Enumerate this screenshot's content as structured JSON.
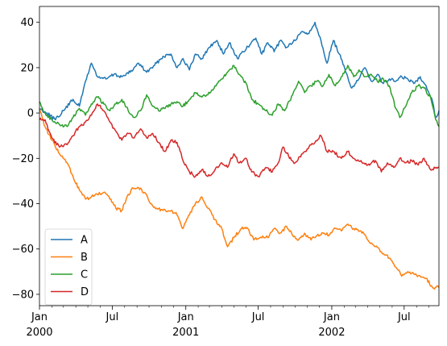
{
  "chart_data": {
    "type": "line",
    "title": "",
    "xlabel": "",
    "ylabel": "",
    "x_range": [
      "2000-01-01",
      "2002-09-26"
    ],
    "ylim": [
      -85,
      47
    ],
    "grid": false,
    "legend_position": "lower-left",
    "y_ticks": [
      40,
      20,
      0,
      -20,
      -40,
      -60,
      -80
    ],
    "y_tick_labels": [
      "40",
      "20",
      "0",
      "−20",
      "−40",
      "−60",
      "−80"
    ],
    "x_major_ticks": [
      {
        "date": "2000-01-01",
        "line1": "Jan",
        "line2": "2000"
      },
      {
        "date": "2000-07-01",
        "line1": "Jul",
        "line2": ""
      },
      {
        "date": "2001-01-01",
        "line1": "Jan",
        "line2": "2001"
      },
      {
        "date": "2001-07-01",
        "line1": "Jul",
        "line2": ""
      },
      {
        "date": "2002-01-01",
        "line1": "Jan",
        "line2": "2002"
      },
      {
        "date": "2002-07-01",
        "line1": "Jul",
        "line2": ""
      }
    ],
    "x_minor_ticks": [
      "2000-02-01",
      "2000-03-01",
      "2000-04-01",
      "2000-05-01",
      "2000-06-01",
      "2000-08-01",
      "2000-09-01",
      "2000-10-01",
      "2000-11-01",
      "2000-12-01",
      "2001-02-01",
      "2001-03-01",
      "2001-04-01",
      "2001-05-01",
      "2001-06-01",
      "2001-08-01",
      "2001-09-01",
      "2001-10-01",
      "2001-11-01",
      "2001-12-01",
      "2002-02-01",
      "2002-03-01",
      "2002-04-01",
      "2002-05-01",
      "2002-06-01",
      "2002-08-01",
      "2002-09-01"
    ],
    "series": [
      {
        "name": "A",
        "color": "#1f77b4",
        "points": [
          [
            "2000-01-01",
            2
          ],
          [
            "2000-01-20",
            0
          ],
          [
            "2000-02-10",
            -3
          ],
          [
            "2000-03-01",
            1
          ],
          [
            "2000-03-25",
            6
          ],
          [
            "2000-04-10",
            3
          ],
          [
            "2000-04-25",
            14
          ],
          [
            "2000-05-10",
            22
          ],
          [
            "2000-05-25",
            16
          ],
          [
            "2000-06-15",
            15
          ],
          [
            "2000-07-05",
            17
          ],
          [
            "2000-07-25",
            16
          ],
          [
            "2000-08-15",
            18
          ],
          [
            "2000-09-05",
            22
          ],
          [
            "2000-09-25",
            18
          ],
          [
            "2000-10-15",
            21
          ],
          [
            "2000-11-05",
            25
          ],
          [
            "2000-11-25",
            26
          ],
          [
            "2000-12-10",
            20
          ],
          [
            "2000-12-25",
            24
          ],
          [
            "2001-01-10",
            19
          ],
          [
            "2001-01-25",
            26
          ],
          [
            "2001-02-10",
            24
          ],
          [
            "2001-03-01",
            29
          ],
          [
            "2001-03-20",
            32
          ],
          [
            "2001-04-05",
            26
          ],
          [
            "2001-04-20",
            31
          ],
          [
            "2001-05-10",
            24
          ],
          [
            "2001-05-25",
            27
          ],
          [
            "2001-06-10",
            30
          ],
          [
            "2001-06-25",
            33
          ],
          [
            "2001-07-10",
            26
          ],
          [
            "2001-07-25",
            31
          ],
          [
            "2001-08-10",
            27
          ],
          [
            "2001-08-25",
            32
          ],
          [
            "2001-09-10",
            29
          ],
          [
            "2001-10-01",
            32
          ],
          [
            "2001-10-20",
            36
          ],
          [
            "2001-11-05",
            35
          ],
          [
            "2001-11-20",
            40
          ],
          [
            "2001-12-05",
            32
          ],
          [
            "2001-12-20",
            22
          ],
          [
            "2002-01-05",
            32
          ],
          [
            "2002-01-20",
            26
          ],
          [
            "2002-02-05",
            18
          ],
          [
            "2002-02-20",
            11
          ],
          [
            "2002-03-10",
            15
          ],
          [
            "2002-03-25",
            20
          ],
          [
            "2002-04-10",
            14
          ],
          [
            "2002-04-25",
            17
          ],
          [
            "2002-05-10",
            13
          ],
          [
            "2002-05-25",
            15
          ],
          [
            "2002-06-10",
            14
          ],
          [
            "2002-06-25",
            16
          ],
          [
            "2002-07-10",
            15
          ],
          [
            "2002-07-25",
            13
          ],
          [
            "2002-08-10",
            16
          ],
          [
            "2002-08-25",
            12
          ],
          [
            "2002-09-10",
            5
          ],
          [
            "2002-09-18",
            -2
          ],
          [
            "2002-09-26",
            1
          ]
        ]
      },
      {
        "name": "B",
        "color": "#ff7f0e",
        "points": [
          [
            "2000-01-01",
            2
          ],
          [
            "2000-01-15",
            -6
          ],
          [
            "2000-02-01",
            -12
          ],
          [
            "2000-02-20",
            -18
          ],
          [
            "2000-03-10",
            -22
          ],
          [
            "2000-03-25",
            -28
          ],
          [
            "2000-04-10",
            -34
          ],
          [
            "2000-04-25",
            -38
          ],
          [
            "2000-05-10",
            -37
          ],
          [
            "2000-05-25",
            -36
          ],
          [
            "2000-06-10",
            -35
          ],
          [
            "2000-06-25",
            -38
          ],
          [
            "2000-07-10",
            -42
          ],
          [
            "2000-07-25",
            -43
          ],
          [
            "2000-08-05",
            -38
          ],
          [
            "2000-08-20",
            -33
          ],
          [
            "2000-09-05",
            -33
          ],
          [
            "2000-09-20",
            -35
          ],
          [
            "2000-10-05",
            -40
          ],
          [
            "2000-10-20",
            -42
          ],
          [
            "2000-11-05",
            -43
          ],
          [
            "2000-11-25",
            -43
          ],
          [
            "2000-12-10",
            -45
          ],
          [
            "2000-12-25",
            -51
          ],
          [
            "2001-01-10",
            -45
          ],
          [
            "2001-01-25",
            -40
          ],
          [
            "2001-02-10",
            -37
          ],
          [
            "2001-02-25",
            -42
          ],
          [
            "2001-03-15",
            -47
          ],
          [
            "2001-04-01",
            -51
          ],
          [
            "2001-04-15",
            -59
          ],
          [
            "2001-05-01",
            -55
          ],
          [
            "2001-05-20",
            -51
          ],
          [
            "2001-06-05",
            -51
          ],
          [
            "2001-06-20",
            -56
          ],
          [
            "2001-07-05",
            -55
          ],
          [
            "2001-07-25",
            -55
          ],
          [
            "2001-08-10",
            -51
          ],
          [
            "2001-08-25",
            -53
          ],
          [
            "2001-09-10",
            -50
          ],
          [
            "2001-09-25",
            -54
          ],
          [
            "2001-10-10",
            -56
          ],
          [
            "2001-10-25",
            -53
          ],
          [
            "2001-11-10",
            -56
          ],
          [
            "2001-11-25",
            -54
          ],
          [
            "2001-12-10",
            -53
          ],
          [
            "2001-12-25",
            -54
          ],
          [
            "2002-01-10",
            -51
          ],
          [
            "2002-01-25",
            -52
          ],
          [
            "2002-02-10",
            -49
          ],
          [
            "2002-02-25",
            -51
          ],
          [
            "2002-03-15",
            -52
          ],
          [
            "2002-04-01",
            -56
          ],
          [
            "2002-04-20",
            -59
          ],
          [
            "2002-05-10",
            -62
          ],
          [
            "2002-05-25",
            -64
          ],
          [
            "2002-06-10",
            -68
          ],
          [
            "2002-06-25",
            -72
          ],
          [
            "2002-07-10",
            -70
          ],
          [
            "2002-07-25",
            -71
          ],
          [
            "2002-08-10",
            -72
          ],
          [
            "2002-08-25",
            -73
          ],
          [
            "2002-09-10",
            -77
          ],
          [
            "2002-09-26",
            -77
          ]
        ]
      },
      {
        "name": "C",
        "color": "#2ca02c",
        "points": [
          [
            "2000-01-01",
            5
          ],
          [
            "2000-01-15",
            0
          ],
          [
            "2000-02-01",
            -3
          ],
          [
            "2000-02-20",
            -5
          ],
          [
            "2000-03-10",
            -6
          ],
          [
            "2000-03-25",
            -2
          ],
          [
            "2000-04-10",
            2
          ],
          [
            "2000-04-25",
            -1
          ],
          [
            "2000-05-10",
            4
          ],
          [
            "2000-05-25",
            7
          ],
          [
            "2000-06-10",
            4
          ],
          [
            "2000-06-25",
            1
          ],
          [
            "2000-07-10",
            4
          ],
          [
            "2000-07-25",
            6
          ],
          [
            "2000-08-10",
            1
          ],
          [
            "2000-08-25",
            -2
          ],
          [
            "2000-09-10",
            1
          ],
          [
            "2000-09-25",
            8
          ],
          [
            "2000-10-10",
            3
          ],
          [
            "2000-10-25",
            1
          ],
          [
            "2000-11-10",
            2
          ],
          [
            "2000-11-25",
            4
          ],
          [
            "2000-12-10",
            5
          ],
          [
            "2000-12-25",
            3
          ],
          [
            "2001-01-10",
            6
          ],
          [
            "2001-01-25",
            9
          ],
          [
            "2001-02-10",
            7
          ],
          [
            "2001-02-25",
            8
          ],
          [
            "2001-03-15",
            12
          ],
          [
            "2001-04-01",
            15
          ],
          [
            "2001-04-15",
            18
          ],
          [
            "2001-05-01",
            21
          ],
          [
            "2001-05-15",
            17
          ],
          [
            "2001-06-01",
            13
          ],
          [
            "2001-06-15",
            6
          ],
          [
            "2001-07-01",
            4
          ],
          [
            "2001-07-20",
            1
          ],
          [
            "2001-08-05",
            -1
          ],
          [
            "2001-08-20",
            4
          ],
          [
            "2001-09-05",
            1
          ],
          [
            "2001-09-25",
            8
          ],
          [
            "2001-10-10",
            14
          ],
          [
            "2001-10-25",
            9
          ],
          [
            "2001-11-10",
            12
          ],
          [
            "2001-11-25",
            14
          ],
          [
            "2001-12-10",
            12
          ],
          [
            "2001-12-25",
            17
          ],
          [
            "2002-01-10",
            12
          ],
          [
            "2002-01-25",
            16
          ],
          [
            "2002-02-10",
            21
          ],
          [
            "2002-02-25",
            16
          ],
          [
            "2002-03-10",
            19
          ],
          [
            "2002-03-25",
            16
          ],
          [
            "2002-04-10",
            17
          ],
          [
            "2002-04-25",
            14
          ],
          [
            "2002-05-10",
            15
          ],
          [
            "2002-05-25",
            12
          ],
          [
            "2002-06-10",
            2
          ],
          [
            "2002-06-20",
            -2
          ],
          [
            "2002-07-05",
            3
          ],
          [
            "2002-07-20",
            9
          ],
          [
            "2002-08-05",
            12
          ],
          [
            "2002-08-20",
            11
          ],
          [
            "2002-09-05",
            7
          ],
          [
            "2002-09-18",
            -3
          ],
          [
            "2002-09-26",
            -6
          ]
        ]
      },
      {
        "name": "D",
        "color": "#d62728",
        "points": [
          [
            "2000-01-01",
            -3
          ],
          [
            "2000-01-15",
            -3
          ],
          [
            "2000-02-01",
            -11
          ],
          [
            "2000-02-20",
            -15
          ],
          [
            "2000-03-10",
            -14
          ],
          [
            "2000-03-25",
            -10
          ],
          [
            "2000-04-10",
            -6
          ],
          [
            "2000-04-25",
            -4
          ],
          [
            "2000-05-10",
            -1
          ],
          [
            "2000-05-25",
            4
          ],
          [
            "2000-06-10",
            1
          ],
          [
            "2000-06-25",
            -4
          ],
          [
            "2000-07-10",
            -8
          ],
          [
            "2000-07-25",
            -12
          ],
          [
            "2000-08-10",
            -9
          ],
          [
            "2000-08-25",
            -11
          ],
          [
            "2000-09-10",
            -7
          ],
          [
            "2000-09-25",
            -11
          ],
          [
            "2000-10-10",
            -9
          ],
          [
            "2000-10-25",
            -13
          ],
          [
            "2000-11-10",
            -17
          ],
          [
            "2000-11-25",
            -12
          ],
          [
            "2000-12-10",
            -13
          ],
          [
            "2000-12-25",
            -21
          ],
          [
            "2001-01-10",
            -26
          ],
          [
            "2001-01-25",
            -28
          ],
          [
            "2001-02-10",
            -25
          ],
          [
            "2001-02-25",
            -28
          ],
          [
            "2001-03-15",
            -25
          ],
          [
            "2001-04-01",
            -22
          ],
          [
            "2001-04-15",
            -24
          ],
          [
            "2001-05-01",
            -18
          ],
          [
            "2001-05-15",
            -22
          ],
          [
            "2001-06-01",
            -20
          ],
          [
            "2001-06-15",
            -26
          ],
          [
            "2001-07-01",
            -28
          ],
          [
            "2001-07-20",
            -24
          ],
          [
            "2001-08-05",
            -26
          ],
          [
            "2001-08-20",
            -22
          ],
          [
            "2001-09-01",
            -15
          ],
          [
            "2001-09-15",
            -19
          ],
          [
            "2001-10-01",
            -22
          ],
          [
            "2001-10-20",
            -18
          ],
          [
            "2001-11-05",
            -15
          ],
          [
            "2001-11-20",
            -13
          ],
          [
            "2001-12-05",
            -10
          ],
          [
            "2001-12-20",
            -17
          ],
          [
            "2002-01-05",
            -17
          ],
          [
            "2002-01-25",
            -20
          ],
          [
            "2002-02-10",
            -17
          ],
          [
            "2002-02-25",
            -20
          ],
          [
            "2002-03-15",
            -21
          ],
          [
            "2002-04-01",
            -23
          ],
          [
            "2002-04-20",
            -21
          ],
          [
            "2002-05-05",
            -26
          ],
          [
            "2002-05-20",
            -22
          ],
          [
            "2002-06-05",
            -24
          ],
          [
            "2002-06-20",
            -20
          ],
          [
            "2002-07-05",
            -22
          ],
          [
            "2002-07-20",
            -21
          ],
          [
            "2002-08-05",
            -23
          ],
          [
            "2002-08-20",
            -20
          ],
          [
            "2002-09-05",
            -25
          ],
          [
            "2002-09-26",
            -24
          ]
        ]
      }
    ]
  }
}
